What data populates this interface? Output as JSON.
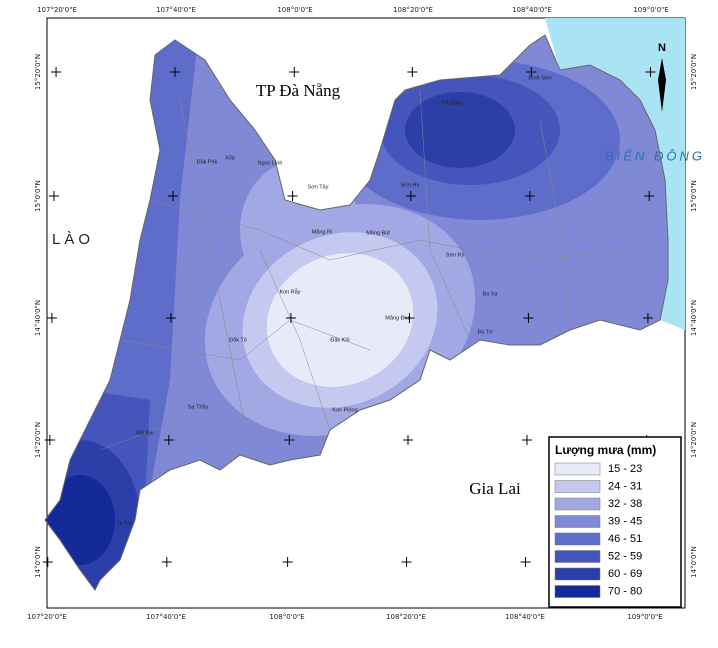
{
  "map": {
    "place_labels": [
      "TP Đà Nẵng",
      "LÀO",
      "BIỂN ĐÔNG",
      "Gia Lai"
    ],
    "longitude_labels": [
      "107°20'0\"E",
      "107°40'0\"E",
      "108°0'0\"E",
      "108°20'0\"E",
      "108°40'0\"E",
      "109°0'0\"E"
    ],
    "latitude_labels": [
      "15°20'0\"N",
      "15°0'0\"N",
      "14°40'0\"N",
      "14°20'0\"N",
      "14°0'0\"N"
    ],
    "commune_labels": [
      "Măng Ri",
      "Măng Bút",
      "Đăk Kôi",
      "Măng Đen",
      "Kon Plông",
      "Sơn Hà",
      "Sơn Tây",
      "Sơn Kỳ",
      "Ba Tơ",
      "Ba Xa",
      "Ngọc Linh",
      "Đăk Tô",
      "Sa Thầy",
      "Mô Rai",
      "Ia Tơi",
      "Bình Sơn",
      "Trà Bồng",
      "Đăk Pék",
      "Xốp",
      "Kon Rẫy"
    ],
    "north_label": "N",
    "legend": {
      "title": "Lượng mưa (mm)",
      "items": [
        {
          "label": "15 - 23",
          "color": "#e9eaf9"
        },
        {
          "label": "24 - 31",
          "color": "#c5c8ef"
        },
        {
          "label": "32 - 38",
          "color": "#a2a8e3"
        },
        {
          "label": "39 - 45",
          "color": "#7f89d6"
        },
        {
          "label": "46 - 51",
          "color": "#5f6dca"
        },
        {
          "label": "52 - 59",
          "color": "#4555bb"
        },
        {
          "label": "60 - 69",
          "color": "#2c3fa8"
        },
        {
          "label": "70 - 80",
          "color": "#142a98"
        }
      ]
    }
  }
}
